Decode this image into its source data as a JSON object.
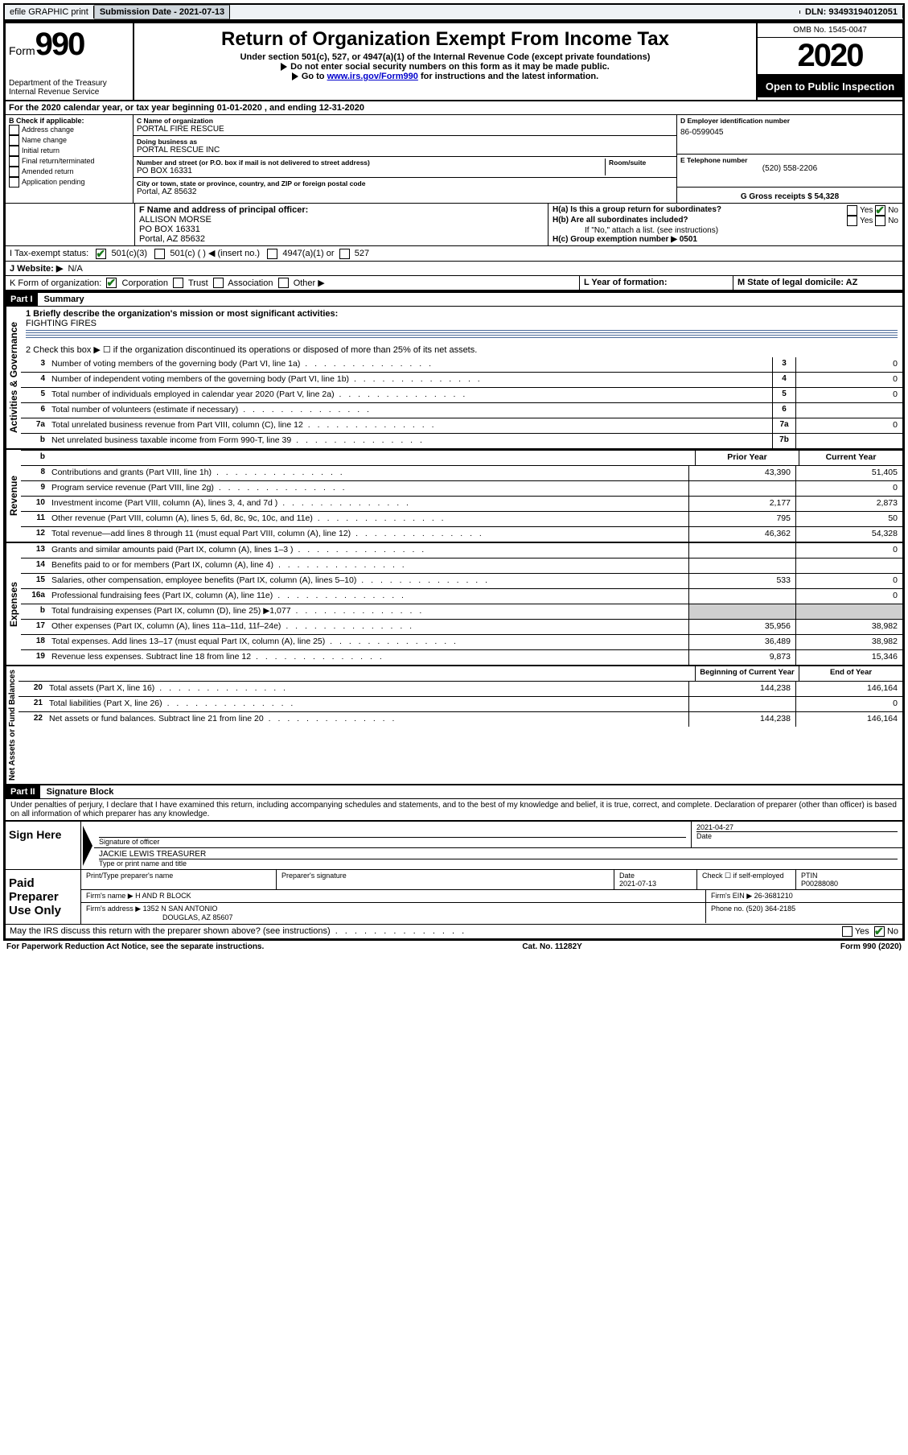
{
  "topbar": {
    "efile": "efile GRAPHIC print",
    "submission_label": "Submission Date - 2021-07-13",
    "dln_label": "DLN: 93493194012051"
  },
  "header": {
    "form_prefix": "Form",
    "form_number": "990",
    "dept": "Department of the Treasury\nInternal Revenue Service",
    "title": "Return of Organization Exempt From Income Tax",
    "subtitle": "Under section 501(c), 527, or 4947(a)(1) of the Internal Revenue Code (except private foundations)",
    "note1": "Do not enter social security numbers on this form as it may be made public.",
    "note2_prefix": "Go to ",
    "note2_link": "www.irs.gov/Form990",
    "note2_suffix": " for instructions and the latest information.",
    "omb": "OMB No. 1545-0047",
    "year": "2020",
    "open_public": "Open to Public Inspection"
  },
  "line_a": "For the 2020 calendar year, or tax year beginning 01-01-2020    , and ending 12-31-2020",
  "block_b": {
    "label": "B Check if applicable:",
    "items": [
      "Address change",
      "Name change",
      "Initial return",
      "Final return/terminated",
      "Amended return",
      "Application pending"
    ]
  },
  "block_c": {
    "name_label": "C Name of organization",
    "name": "PORTAL FIRE RESCUE",
    "dba_label": "Doing business as",
    "dba": "PORTAL RESCUE INC",
    "addr_label": "Number and street (or P.O. box if mail is not delivered to street address)",
    "room_label": "Room/suite",
    "addr": "PO BOX 16331",
    "city_label": "City or town, state or province, country, and ZIP or foreign postal code",
    "city": "Portal, AZ  85632"
  },
  "block_d": {
    "ein_label": "D Employer identification number",
    "ein": "86-0599045",
    "tel_label": "E Telephone number",
    "tel": "(520) 558-2206",
    "gross_label": "G Gross receipts $ 54,328"
  },
  "block_f": {
    "label": "F  Name and address of principal officer:",
    "name": "ALLISON MORSE",
    "addr": "PO BOX 16331",
    "city": "Portal, AZ  85632"
  },
  "block_h": {
    "ha": "H(a)  Is this a group return for subordinates?",
    "hb": "H(b)  Are all subordinates included?",
    "hb_note": "If \"No,\" attach a list. (see instructions)",
    "hc": "H(c)  Group exemption number ▶   0501",
    "yes": "Yes",
    "no": "No"
  },
  "line_i": {
    "label": "I    Tax-exempt status:",
    "o1": "501(c)(3)",
    "o2": "501(c) (  ) ◀ (insert no.)",
    "o3": "4947(a)(1) or",
    "o4": "527"
  },
  "line_j": {
    "label": "J    Website: ▶",
    "val": "N/A"
  },
  "line_k": {
    "label": "K Form of organization:",
    "o1": "Corporation",
    "o2": "Trust",
    "o3": "Association",
    "o4": "Other ▶",
    "l_label": "L Year of formation:",
    "m_label": "M State of legal domicile: AZ"
  },
  "part1": {
    "tag": "Part I",
    "title": "Summary"
  },
  "summary": {
    "q1_label": "1  Briefly describe the organization's mission or most significant activities:",
    "q1_val": "FIGHTING FIRES",
    "q2": "2    Check this box ▶ ☐  if the organization discontinued its operations or disposed of more than 25% of its net assets.",
    "lines": [
      {
        "n": "3",
        "t": "Number of voting members of the governing body (Part VI, line 1a)",
        "box": "3",
        "v": "0"
      },
      {
        "n": "4",
        "t": "Number of independent voting members of the governing body (Part VI, line 1b)",
        "box": "4",
        "v": "0"
      },
      {
        "n": "5",
        "t": "Total number of individuals employed in calendar year 2020 (Part V, line 2a)",
        "box": "5",
        "v": "0"
      },
      {
        "n": "6",
        "t": "Total number of volunteers (estimate if necessary)",
        "box": "6",
        "v": ""
      },
      {
        "n": "7a",
        "t": "Total unrelated business revenue from Part VIII, column (C), line 12",
        "box": "7a",
        "v": "0"
      },
      {
        "n": "b",
        "t": "Net unrelated business taxable income from Form 990-T, line 39",
        "box": "7b",
        "v": ""
      }
    ]
  },
  "rev_header": {
    "prior": "Prior Year",
    "current": "Current Year"
  },
  "revenue": [
    {
      "n": "8",
      "t": "Contributions and grants (Part VIII, line 1h)",
      "p": "43,390",
      "c": "51,405"
    },
    {
      "n": "9",
      "t": "Program service revenue (Part VIII, line 2g)",
      "p": "",
      "c": "0"
    },
    {
      "n": "10",
      "t": "Investment income (Part VIII, column (A), lines 3, 4, and 7d )",
      "p": "2,177",
      "c": "2,873"
    },
    {
      "n": "11",
      "t": "Other revenue (Part VIII, column (A), lines 5, 6d, 8c, 9c, 10c, and 11e)",
      "p": "795",
      "c": "50"
    },
    {
      "n": "12",
      "t": "Total revenue—add lines 8 through 11 (must equal Part VIII, column (A), line 12)",
      "p": "46,362",
      "c": "54,328"
    }
  ],
  "expenses": [
    {
      "n": "13",
      "t": "Grants and similar amounts paid (Part IX, column (A), lines 1–3 )",
      "p": "",
      "c": "0"
    },
    {
      "n": "14",
      "t": "Benefits paid to or for members (Part IX, column (A), line 4)",
      "p": "",
      "c": ""
    },
    {
      "n": "15",
      "t": "Salaries, other compensation, employee benefits (Part IX, column (A), lines 5–10)",
      "p": "533",
      "c": "0"
    },
    {
      "n": "16a",
      "t": "Professional fundraising fees (Part IX, column (A), line 11e)",
      "p": "",
      "c": "0"
    },
    {
      "n": "b",
      "t": "Total fundraising expenses (Part IX, column (D), line 25) ▶1,077",
      "p": "GRAY",
      "c": "GRAY"
    },
    {
      "n": "17",
      "t": "Other expenses (Part IX, column (A), lines 11a–11d, 11f–24e)",
      "p": "35,956",
      "c": "38,982"
    },
    {
      "n": "18",
      "t": "Total expenses. Add lines 13–17 (must equal Part IX, column (A), line 25)",
      "p": "36,489",
      "c": "38,982"
    },
    {
      "n": "19",
      "t": "Revenue less expenses. Subtract line 18 from line 12",
      "p": "9,873",
      "c": "15,346"
    }
  ],
  "na_header": {
    "prior": "Beginning of Current Year",
    "current": "End of Year"
  },
  "netassets": [
    {
      "n": "20",
      "t": "Total assets (Part X, line 16)",
      "p": "144,238",
      "c": "146,164"
    },
    {
      "n": "21",
      "t": "Total liabilities (Part X, line 26)",
      "p": "",
      "c": "0"
    },
    {
      "n": "22",
      "t": "Net assets or fund balances. Subtract line 21 from line 20",
      "p": "144,238",
      "c": "146,164"
    }
  ],
  "part2": {
    "tag": "Part II",
    "title": "Signature Block"
  },
  "penalties": "Under penalties of perjury, I declare that I have examined this return, including accompanying schedules and statements, and to the best of my knowledge and belief, it is true, correct, and complete. Declaration of preparer (other than officer) is based on all information of which preparer has any knowledge.",
  "sign": {
    "here": "Sign Here",
    "sig_label": "Signature of officer",
    "date": "2021-04-27",
    "date_label": "Date",
    "name": "JACKIE LEWIS  TREASURER",
    "name_label": "Type or print name and title"
  },
  "paid": {
    "label": "Paid Preparer Use Only",
    "h1": "Print/Type preparer's name",
    "h2": "Preparer's signature",
    "h3_label": "Date",
    "h3": "2021-07-13",
    "h4": "Check ☐ if self-employed",
    "h5_label": "PTIN",
    "h5": "P00288080",
    "firm_name_label": "Firm's name    ▶",
    "firm_name": "H AND R BLOCK",
    "firm_ein_label": "Firm's EIN ▶",
    "firm_ein": "26-3681210",
    "firm_addr_label": "Firm's address ▶",
    "firm_addr1": "1352 N SAN ANTONIO",
    "firm_addr2": "DOUGLAS, AZ  85607",
    "phone_label": "Phone no.",
    "phone": "(520) 364-2185"
  },
  "discuss": "May the IRS discuss this return with the preparer shown above? (see instructions)",
  "footer": {
    "left": "For Paperwork Reduction Act Notice, see the separate instructions.",
    "center": "Cat. No. 11282Y",
    "right": "Form 990 (2020)"
  },
  "side_labels": {
    "gov": "Activities & Governance",
    "rev": "Revenue",
    "exp": "Expenses",
    "na": "Net Assets or Fund Balances"
  }
}
